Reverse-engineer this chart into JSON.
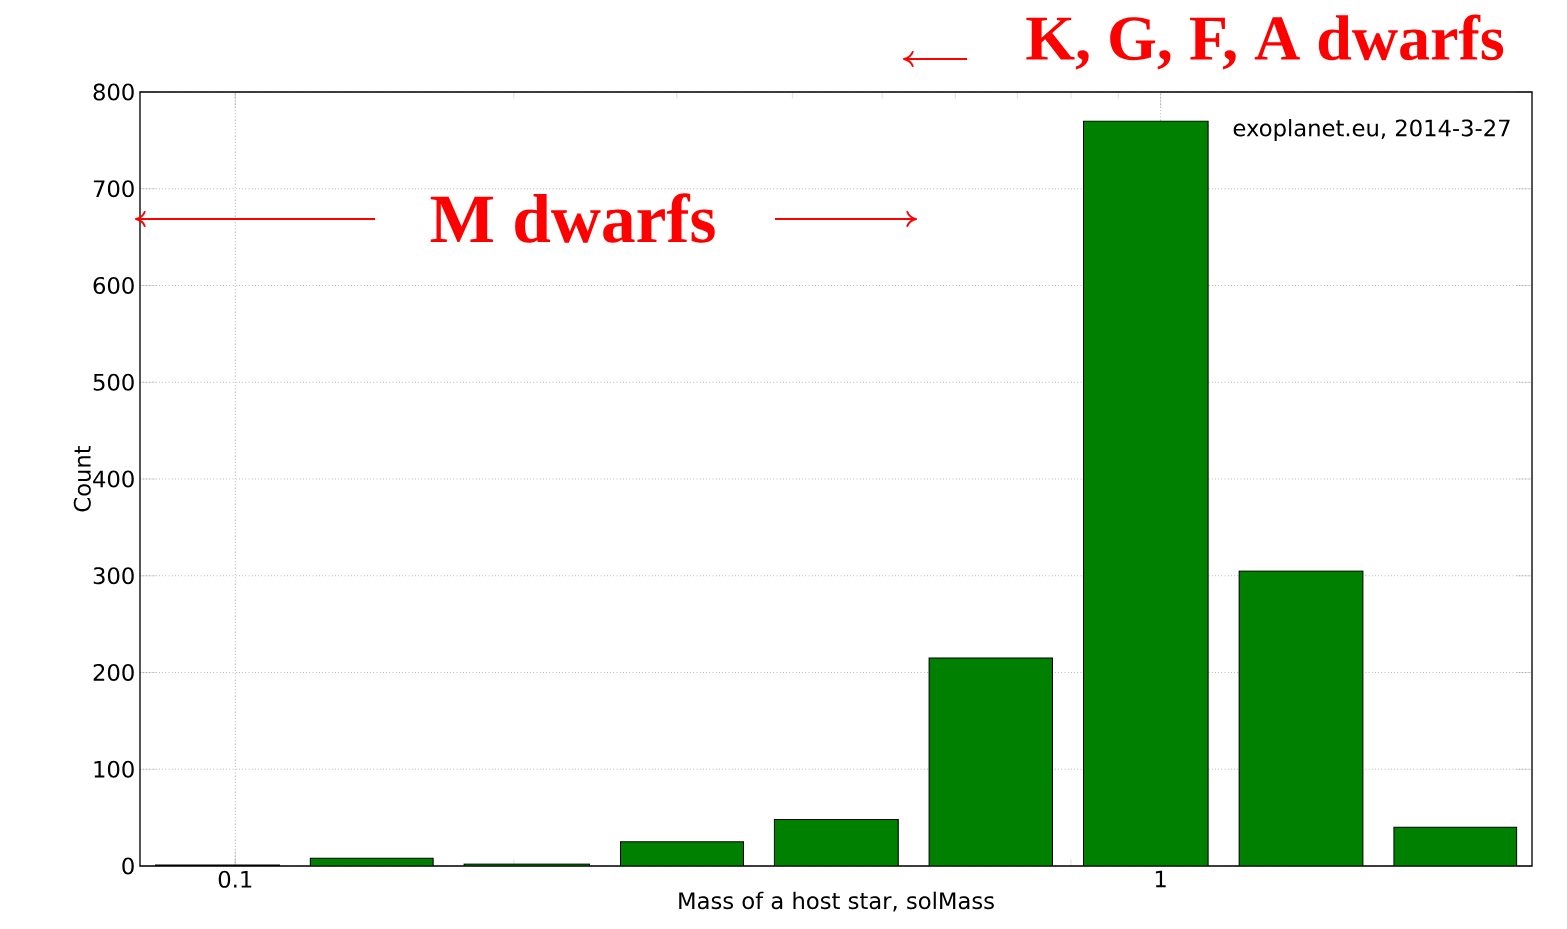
{
  "chart_data": {
    "type": "histogram",
    "xlabel": "Mass of a host star, solMass",
    "ylabel": "Count",
    "annotations": [
      "M dwarfs",
      "K, G, F, A dwarfs",
      "exoplanet.eu, 2014-3-27"
    ],
    "bins": [
      0.0789,
      0.116,
      0.17,
      0.251,
      0.368,
      0.541,
      0.794,
      1.17,
      1.72,
      2.52
    ],
    "values": [
      1,
      8,
      2,
      25,
      48,
      215,
      770,
      305,
      40
    ],
    "color": "#008000",
    "log": "x",
    "xlim": [
      0.0789,
      2.52
    ],
    "ylim": [
      0,
      800
    ],
    "xticks": [
      0.1,
      1
    ],
    "yticks": [
      0,
      100,
      200,
      300,
      400,
      500,
      600,
      700,
      800
    ],
    "grid": true
  }
}
